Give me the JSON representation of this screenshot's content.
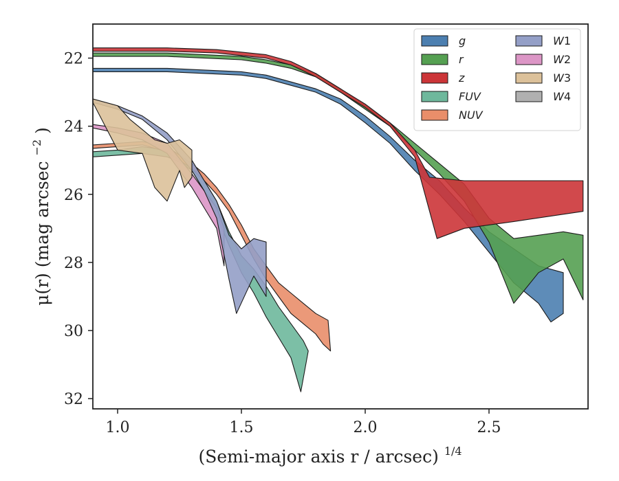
{
  "chart_data": {
    "type": "area",
    "xlabel": "(Semi-major axis r / arcsec)",
    "xlabel_var": "r",
    "xlabel_exp": "1/4",
    "ylabel": "μ(r) (mag arcsec",
    "ylabel_var": "r",
    "ylabel_exp": "−2",
    "xlim": [
      0.9,
      2.9
    ],
    "ylim": [
      32.3,
      21.0
    ],
    "y_inverted": true,
    "xticks": [
      1.0,
      1.5,
      2.0,
      2.5
    ],
    "xtick_labels": [
      "1.0",
      "1.5",
      "2.0",
      "2.5"
    ],
    "yticks": [
      22,
      24,
      26,
      28,
      30,
      32
    ],
    "ytick_labels": [
      "22",
      "24",
      "26",
      "28",
      "30",
      "32"
    ],
    "grid": false,
    "legend": {
      "placement": "top-right",
      "columns": 2,
      "entries": [
        {
          "label": "g",
          "color": "#4c7fb0"
        },
        {
          "label": "r",
          "color": "#55a052"
        },
        {
          "label": "z",
          "color": "#cc3538"
        },
        {
          "label": "FUV",
          "color": "#6eb89c"
        },
        {
          "label": "NUV",
          "color": "#e98e6a"
        },
        {
          "label": "W1",
          "color": "#949fc7"
        },
        {
          "label": "W2",
          "color": "#dc96c6"
        },
        {
          "label": "W3",
          "color": "#dcc19a"
        },
        {
          "label": "W4",
          "color": "#b0b0b0"
        }
      ]
    },
    "series": [
      {
        "name": "FUV",
        "color": "#6eb89c",
        "upper": [
          [
            0.9,
            24.75
          ],
          [
            1.0,
            24.7
          ],
          [
            1.1,
            24.6
          ],
          [
            1.2,
            24.7
          ],
          [
            1.25,
            24.85
          ],
          [
            1.3,
            25.1
          ],
          [
            1.35,
            25.6
          ],
          [
            1.4,
            26.2
          ],
          [
            1.45,
            27.1
          ],
          [
            1.5,
            27.8
          ],
          [
            1.55,
            28.2
          ],
          [
            1.6,
            28.7
          ],
          [
            1.65,
            29.3
          ],
          [
            1.7,
            29.8
          ],
          [
            1.75,
            30.3
          ]
        ],
        "lower": [
          [
            0.9,
            24.9
          ],
          [
            1.0,
            24.85
          ],
          [
            1.1,
            24.8
          ],
          [
            1.2,
            24.9
          ],
          [
            1.25,
            25.05
          ],
          [
            1.3,
            25.3
          ],
          [
            1.35,
            25.9
          ],
          [
            1.4,
            26.6
          ],
          [
            1.45,
            27.5
          ],
          [
            1.5,
            28.3
          ],
          [
            1.55,
            28.9
          ],
          [
            1.6,
            29.6
          ],
          [
            1.65,
            30.2
          ],
          [
            1.7,
            30.8
          ],
          [
            1.74,
            31.8
          ],
          [
            1.77,
            30.6
          ]
        ]
      },
      {
        "name": "NUV",
        "color": "#e98e6a",
        "upper": [
          [
            0.9,
            24.55
          ],
          [
            1.0,
            24.5
          ],
          [
            1.1,
            24.45
          ],
          [
            1.2,
            24.6
          ],
          [
            1.3,
            25.1
          ],
          [
            1.35,
            25.4
          ],
          [
            1.4,
            25.8
          ],
          [
            1.45,
            26.3
          ],
          [
            1.5,
            26.9
          ],
          [
            1.55,
            27.6
          ],
          [
            1.6,
            28.1
          ],
          [
            1.65,
            28.6
          ],
          [
            1.7,
            28.9
          ],
          [
            1.75,
            29.2
          ],
          [
            1.8,
            29.5
          ],
          [
            1.85,
            29.7
          ]
        ],
        "lower": [
          [
            0.9,
            24.65
          ],
          [
            1.0,
            24.6
          ],
          [
            1.1,
            24.55
          ],
          [
            1.2,
            24.75
          ],
          [
            1.3,
            25.25
          ],
          [
            1.35,
            25.6
          ],
          [
            1.4,
            26.0
          ],
          [
            1.45,
            26.5
          ],
          [
            1.5,
            27.2
          ],
          [
            1.55,
            27.9
          ],
          [
            1.6,
            28.5
          ],
          [
            1.65,
            29.0
          ],
          [
            1.7,
            29.5
          ],
          [
            1.75,
            29.8
          ],
          [
            1.8,
            30.1
          ],
          [
            1.83,
            30.4
          ],
          [
            1.86,
            30.6
          ]
        ]
      },
      {
        "name": "W2",
        "color": "#dc96c6",
        "upper": [
          [
            0.9,
            23.95
          ],
          [
            1.0,
            24.05
          ],
          [
            1.1,
            24.2
          ],
          [
            1.2,
            24.5
          ],
          [
            1.3,
            25.4
          ],
          [
            1.35,
            25.9
          ],
          [
            1.4,
            26.4
          ],
          [
            1.43,
            27.0
          ]
        ],
        "lower": [
          [
            0.9,
            24.05
          ],
          [
            1.0,
            24.2
          ],
          [
            1.1,
            24.4
          ],
          [
            1.2,
            24.8
          ],
          [
            1.3,
            25.8
          ],
          [
            1.35,
            26.4
          ],
          [
            1.4,
            27.0
          ],
          [
            1.43,
            28.1
          ]
        ]
      },
      {
        "name": "W1",
        "color": "#949fc7",
        "upper": [
          [
            0.9,
            23.2
          ],
          [
            1.0,
            23.4
          ],
          [
            1.1,
            23.7
          ],
          [
            1.2,
            24.2
          ],
          [
            1.3,
            25.0
          ],
          [
            1.35,
            25.6
          ],
          [
            1.4,
            26.2
          ],
          [
            1.45,
            27.2
          ],
          [
            1.5,
            27.6
          ],
          [
            1.55,
            27.3
          ],
          [
            1.6,
            27.4
          ]
        ],
        "lower": [
          [
            0.9,
            23.3
          ],
          [
            1.0,
            23.5
          ],
          [
            1.1,
            23.8
          ],
          [
            1.2,
            24.4
          ],
          [
            1.3,
            25.3
          ],
          [
            1.35,
            25.9
          ],
          [
            1.4,
            26.7
          ],
          [
            1.45,
            28.5
          ],
          [
            1.48,
            29.5
          ],
          [
            1.55,
            28.4
          ],
          [
            1.6,
            29.0
          ]
        ]
      },
      {
        "name": "W3",
        "color": "#dcc19a",
        "upper": [
          [
            0.9,
            23.2
          ],
          [
            1.0,
            23.4
          ],
          [
            1.05,
            23.8
          ],
          [
            1.1,
            24.1
          ],
          [
            1.15,
            24.4
          ],
          [
            1.2,
            24.5
          ],
          [
            1.25,
            24.4
          ],
          [
            1.3,
            24.7
          ]
        ],
        "lower": [
          [
            0.9,
            23.3
          ],
          [
            1.0,
            24.7
          ],
          [
            1.1,
            24.8
          ],
          [
            1.15,
            25.8
          ],
          [
            1.2,
            26.2
          ],
          [
            1.25,
            25.3
          ],
          [
            1.27,
            25.8
          ],
          [
            1.3,
            25.5
          ]
        ]
      },
      {
        "name": "g",
        "color": "#4c7fb0",
        "upper": [
          [
            0.9,
            22.3
          ],
          [
            1.2,
            22.3
          ],
          [
            1.5,
            22.4
          ],
          [
            1.6,
            22.5
          ],
          [
            1.7,
            22.7
          ],
          [
            1.8,
            22.9
          ],
          [
            1.9,
            23.2
          ],
          [
            2.0,
            23.7
          ],
          [
            2.1,
            24.3
          ],
          [
            2.2,
            25.0
          ],
          [
            2.3,
            25.6
          ],
          [
            2.4,
            26.4
          ],
          [
            2.5,
            27.1
          ],
          [
            2.6,
            27.6
          ],
          [
            2.7,
            28.1
          ],
          [
            2.8,
            28.3
          ]
        ],
        "lower": [
          [
            0.9,
            22.4
          ],
          [
            1.2,
            22.4
          ],
          [
            1.5,
            22.5
          ],
          [
            1.6,
            22.6
          ],
          [
            1.7,
            22.8
          ],
          [
            1.8,
            23.0
          ],
          [
            1.9,
            23.35
          ],
          [
            2.0,
            23.9
          ],
          [
            2.1,
            24.5
          ],
          [
            2.2,
            25.3
          ],
          [
            2.3,
            26.0
          ],
          [
            2.4,
            26.8
          ],
          [
            2.5,
            27.7
          ],
          [
            2.6,
            28.6
          ],
          [
            2.7,
            29.2
          ],
          [
            2.75,
            29.75
          ],
          [
            2.8,
            29.5
          ]
        ]
      },
      {
        "name": "r",
        "color": "#55a052",
        "upper": [
          [
            0.9,
            21.85
          ],
          [
            1.2,
            21.85
          ],
          [
            1.5,
            21.95
          ],
          [
            1.6,
            22.05
          ],
          [
            1.7,
            22.2
          ],
          [
            1.8,
            22.45
          ],
          [
            1.9,
            22.9
          ],
          [
            2.0,
            23.4
          ],
          [
            2.1,
            23.9
          ],
          [
            2.2,
            24.5
          ],
          [
            2.3,
            25.1
          ],
          [
            2.4,
            25.7
          ],
          [
            2.5,
            26.7
          ],
          [
            2.6,
            27.3
          ],
          [
            2.7,
            27.2
          ],
          [
            2.8,
            27.1
          ],
          [
            2.88,
            27.2
          ]
        ],
        "lower": [
          [
            0.9,
            21.95
          ],
          [
            1.2,
            21.95
          ],
          [
            1.5,
            22.05
          ],
          [
            1.6,
            22.15
          ],
          [
            1.7,
            22.3
          ],
          [
            1.8,
            22.55
          ],
          [
            1.9,
            23.0
          ],
          [
            2.0,
            23.5
          ],
          [
            2.1,
            24.0
          ],
          [
            2.2,
            24.7
          ],
          [
            2.3,
            25.4
          ],
          [
            2.4,
            26.2
          ],
          [
            2.5,
            27.4
          ],
          [
            2.6,
            29.2
          ],
          [
            2.7,
            28.3
          ],
          [
            2.8,
            27.9
          ],
          [
            2.88,
            29.1
          ]
        ]
      },
      {
        "name": "z",
        "color": "#cc3538",
        "upper": [
          [
            0.9,
            21.7
          ],
          [
            1.2,
            21.7
          ],
          [
            1.4,
            21.75
          ],
          [
            1.6,
            21.9
          ],
          [
            1.7,
            22.1
          ],
          [
            1.8,
            22.45
          ],
          [
            1.9,
            22.9
          ],
          [
            2.0,
            23.35
          ],
          [
            2.1,
            23.9
          ],
          [
            2.2,
            24.7
          ],
          [
            2.26,
            25.5
          ],
          [
            2.4,
            25.6
          ],
          [
            2.6,
            25.6
          ],
          [
            2.88,
            25.6
          ]
        ],
        "lower": [
          [
            0.9,
            21.8
          ],
          [
            1.2,
            21.8
          ],
          [
            1.4,
            21.85
          ],
          [
            1.6,
            22.0
          ],
          [
            1.7,
            22.2
          ],
          [
            1.8,
            22.55
          ],
          [
            1.9,
            23.0
          ],
          [
            2.0,
            23.45
          ],
          [
            2.1,
            24.0
          ],
          [
            2.2,
            24.9
          ],
          [
            2.29,
            27.3
          ],
          [
            2.4,
            27.0
          ],
          [
            2.6,
            26.8
          ],
          [
            2.88,
            26.5
          ]
        ]
      }
    ]
  }
}
